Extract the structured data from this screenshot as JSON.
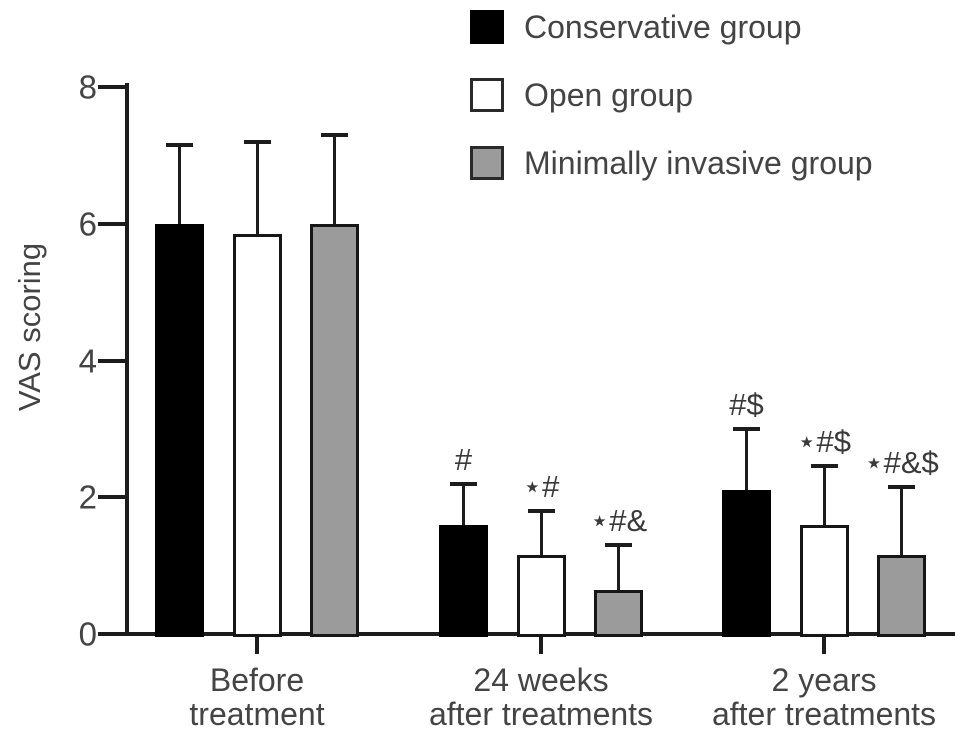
{
  "background": "#ffffff",
  "chart_data": {
    "type": "bar",
    "title": "",
    "xlabel": "",
    "ylabel": "VAS scoring",
    "ylim": [
      0,
      8
    ],
    "yticks": [
      0,
      2,
      4,
      6,
      8
    ],
    "grid": false,
    "legend_position": "top-right",
    "error_bars": "upper-only",
    "categories": [
      [
        "Before",
        "treatment"
      ],
      [
        "24 weeks",
        "after treatments"
      ],
      [
        "2 years",
        "after treatments"
      ]
    ],
    "series": [
      {
        "name": "Conservative group",
        "fill": "#000000",
        "values": [
          6.0,
          1.6,
          2.1
        ],
        "sd_upper": [
          1.15,
          0.6,
          0.9
        ],
        "annotations": [
          "",
          "#",
          "#$"
        ]
      },
      {
        "name": "Open group",
        "fill": "#ffffff",
        "values": [
          5.85,
          1.15,
          1.6
        ],
        "sd_upper": [
          1.35,
          0.65,
          0.85
        ],
        "annotations": [
          "",
          "⋆#",
          "⋆#$"
        ]
      },
      {
        "name": "Minimally invasive group",
        "fill": "#9b9b9b",
        "values": [
          6.0,
          0.65,
          1.15
        ],
        "sd_upper": [
          1.3,
          0.65,
          1.0
        ],
        "annotations": [
          "",
          "⋆#&",
          "⋆#&$"
        ]
      }
    ],
    "colors": {
      "axis": "#1c1c1c",
      "text": "#444444",
      "annotation": "#3a3a3a",
      "bar_border": "#161616"
    }
  }
}
